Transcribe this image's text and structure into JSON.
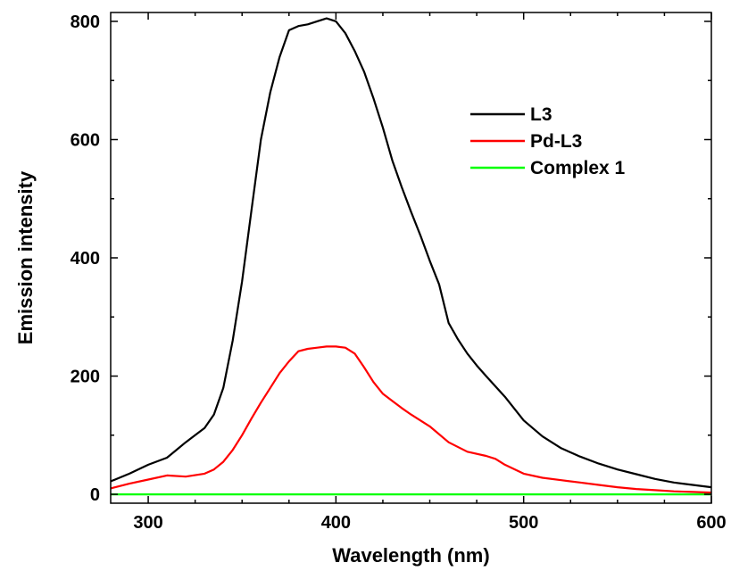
{
  "chart_data": {
    "type": "line",
    "title": "",
    "xlabel": "Wavelength (nm)",
    "ylabel": "Emission intensity",
    "xlim": [
      280,
      600
    ],
    "ylim": [
      -15,
      815
    ],
    "x_ticks": [
      300,
      400,
      500,
      600
    ],
    "x_tick_labels": [
      "300",
      "400",
      "500",
      "600"
    ],
    "y_ticks": [
      0,
      200,
      400,
      600,
      800
    ],
    "y_tick_labels": [
      "0",
      "200",
      "400",
      "600",
      "800"
    ],
    "x_minor_step": 25,
    "y_minor_step": 100,
    "grid": false,
    "legend_position": "top-right",
    "series": [
      {
        "name": "L3",
        "color": "#000000",
        "x": [
          280,
          290,
          300,
          310,
          315,
          320,
          325,
          330,
          335,
          340,
          345,
          350,
          355,
          360,
          365,
          370,
          375,
          380,
          385,
          390,
          395,
          400,
          405,
          410,
          415,
          420,
          425,
          430,
          435,
          440,
          445,
          450,
          455,
          460,
          465,
          470,
          475,
          480,
          490,
          500,
          510,
          520,
          530,
          540,
          550,
          560,
          570,
          580,
          590,
          600
        ],
        "y": [
          22,
          35,
          50,
          62,
          75,
          88,
          100,
          112,
          135,
          180,
          260,
          360,
          480,
          600,
          680,
          740,
          785,
          792,
          795,
          800,
          805,
          800,
          780,
          750,
          715,
          670,
          620,
          565,
          520,
          478,
          438,
          395,
          355,
          290,
          262,
          238,
          218,
          200,
          165,
          125,
          98,
          78,
          64,
          52,
          42,
          34,
          26,
          20,
          16,
          12
        ]
      },
      {
        "name": "Pd-L3",
        "color": "#ff0000",
        "x": [
          280,
          290,
          300,
          310,
          320,
          330,
          335,
          340,
          345,
          350,
          355,
          360,
          365,
          370,
          375,
          380,
          385,
          390,
          395,
          400,
          405,
          410,
          415,
          420,
          425,
          430,
          435,
          440,
          450,
          460,
          470,
          480,
          485,
          490,
          500,
          510,
          520,
          530,
          540,
          550,
          560,
          570,
          580,
          590,
          600
        ],
        "y": [
          10,
          18,
          25,
          32,
          30,
          35,
          42,
          55,
          75,
          100,
          128,
          155,
          180,
          205,
          225,
          242,
          246,
          248,
          250,
          250,
          248,
          238,
          215,
          190,
          170,
          158,
          146,
          135,
          115,
          88,
          72,
          65,
          60,
          50,
          35,
          28,
          24,
          20,
          16,
          12,
          9,
          7,
          5,
          4,
          3
        ]
      },
      {
        "name": "Complex 1",
        "color": "#00ff00",
        "x": [
          280,
          600
        ],
        "y": [
          0,
          0
        ]
      }
    ]
  }
}
